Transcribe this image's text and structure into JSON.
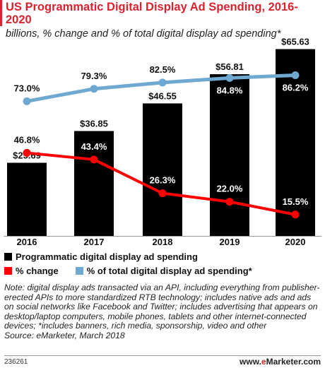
{
  "header": {
    "title": "US Programmatic Digital Display Ad Spending, 2016-2020",
    "subtitle": "billions, % change and % of total digital display ad spending*"
  },
  "chart_data": {
    "type": "bar",
    "categories": [
      "2016",
      "2017",
      "2018",
      "2019",
      "2020"
    ],
    "series": [
      {
        "name": "Programmatic digital display ad spending",
        "kind": "bar",
        "values": [
          25.69,
          36.85,
          46.55,
          56.81,
          65.63
        ],
        "labels": [
          "$25.69",
          "$36.85",
          "$46.55",
          "$56.81",
          "$65.63"
        ],
        "color": "#000000"
      },
      {
        "name": "% change",
        "kind": "line",
        "values": [
          46.8,
          43.4,
          26.3,
          22.0,
          15.5
        ],
        "labels": [
          "46.8%",
          "43.4%",
          "26.3%",
          "22.0%",
          "15.5%"
        ],
        "color": "#ff0000"
      },
      {
        "name": "% of total digital display ad spending*",
        "kind": "line",
        "values": [
          73.0,
          79.3,
          82.5,
          84.8,
          86.2
        ],
        "labels": [
          "73.0%",
          "79.3%",
          "82.5%",
          "84.8%",
          "86.2%"
        ],
        "color": "#6fa8d0"
      }
    ]
  },
  "legend": {
    "items": [
      {
        "label": "Programmatic digital display ad spending",
        "color": "#000000"
      },
      {
        "label": "% change",
        "color": "#ff0000"
      },
      {
        "label": "% of total digital display ad spending*",
        "color": "#6fa8d0"
      }
    ]
  },
  "note": "Note: digital display ads transacted via an API, including everything from publisher-erected APIs to more standardized RTB technology; includes native ads and ads on social networks like Facebook and Twitter; includes advertising that appears on desktop/laptop computers, mobile phones, tablets and other internet-connected devices; *includes banners, rich media, sponsorship, video and other",
  "source": "Source: eMarketer, March 2018",
  "footer": {
    "id": "236261",
    "brand_prefix": "www.",
    "brand_accent": "e",
    "brand_suffix": "Marketer.com"
  }
}
